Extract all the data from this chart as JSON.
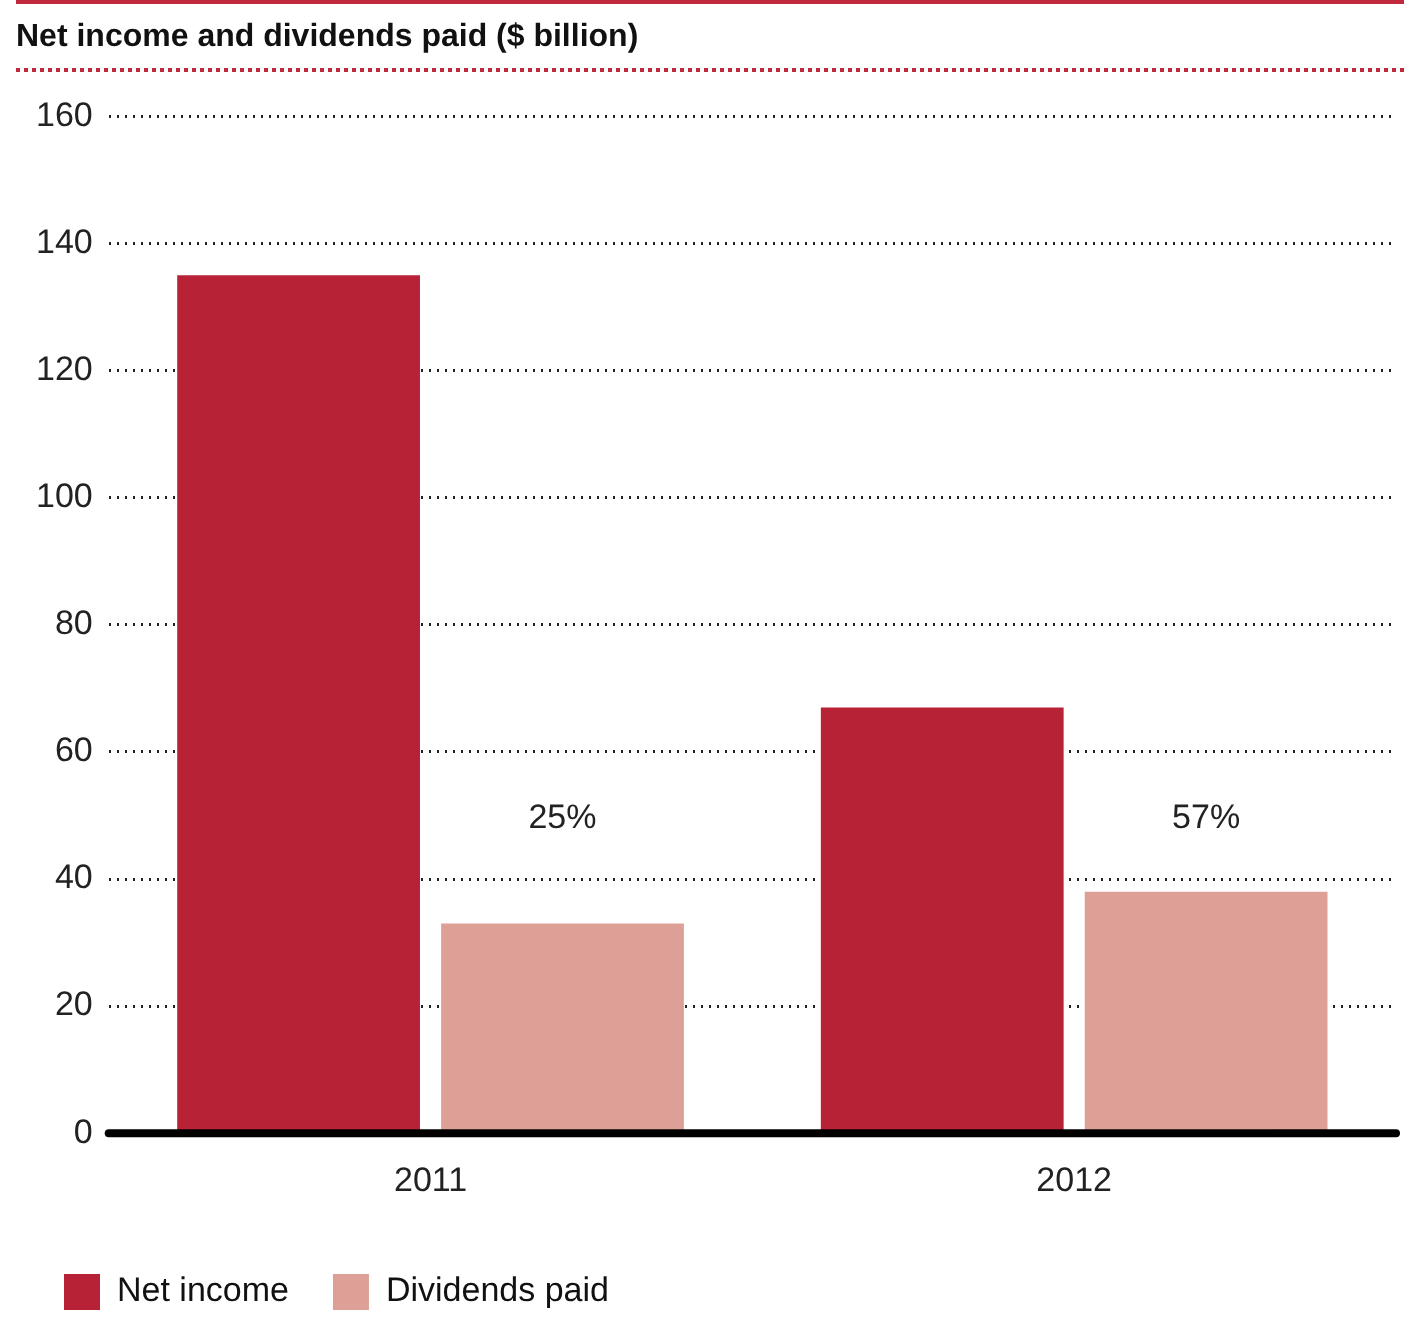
{
  "chart_data": {
    "type": "bar",
    "title": "Net income and dividends paid ($ billion)",
    "categories": [
      "2011",
      "2012"
    ],
    "series": [
      {
        "name": "Net income",
        "color": "#b82236",
        "values": [
          135,
          67
        ]
      },
      {
        "name": "Dividends paid",
        "color": "#dea096",
        "values": [
          33,
          38
        ]
      }
    ],
    "annotations": [
      "25%",
      "57%"
    ],
    "ylim": [
      0,
      160
    ],
    "yticks": [
      0,
      20,
      40,
      60,
      80,
      100,
      120,
      140,
      160
    ],
    "grid": "y",
    "legend": "bottom left"
  }
}
